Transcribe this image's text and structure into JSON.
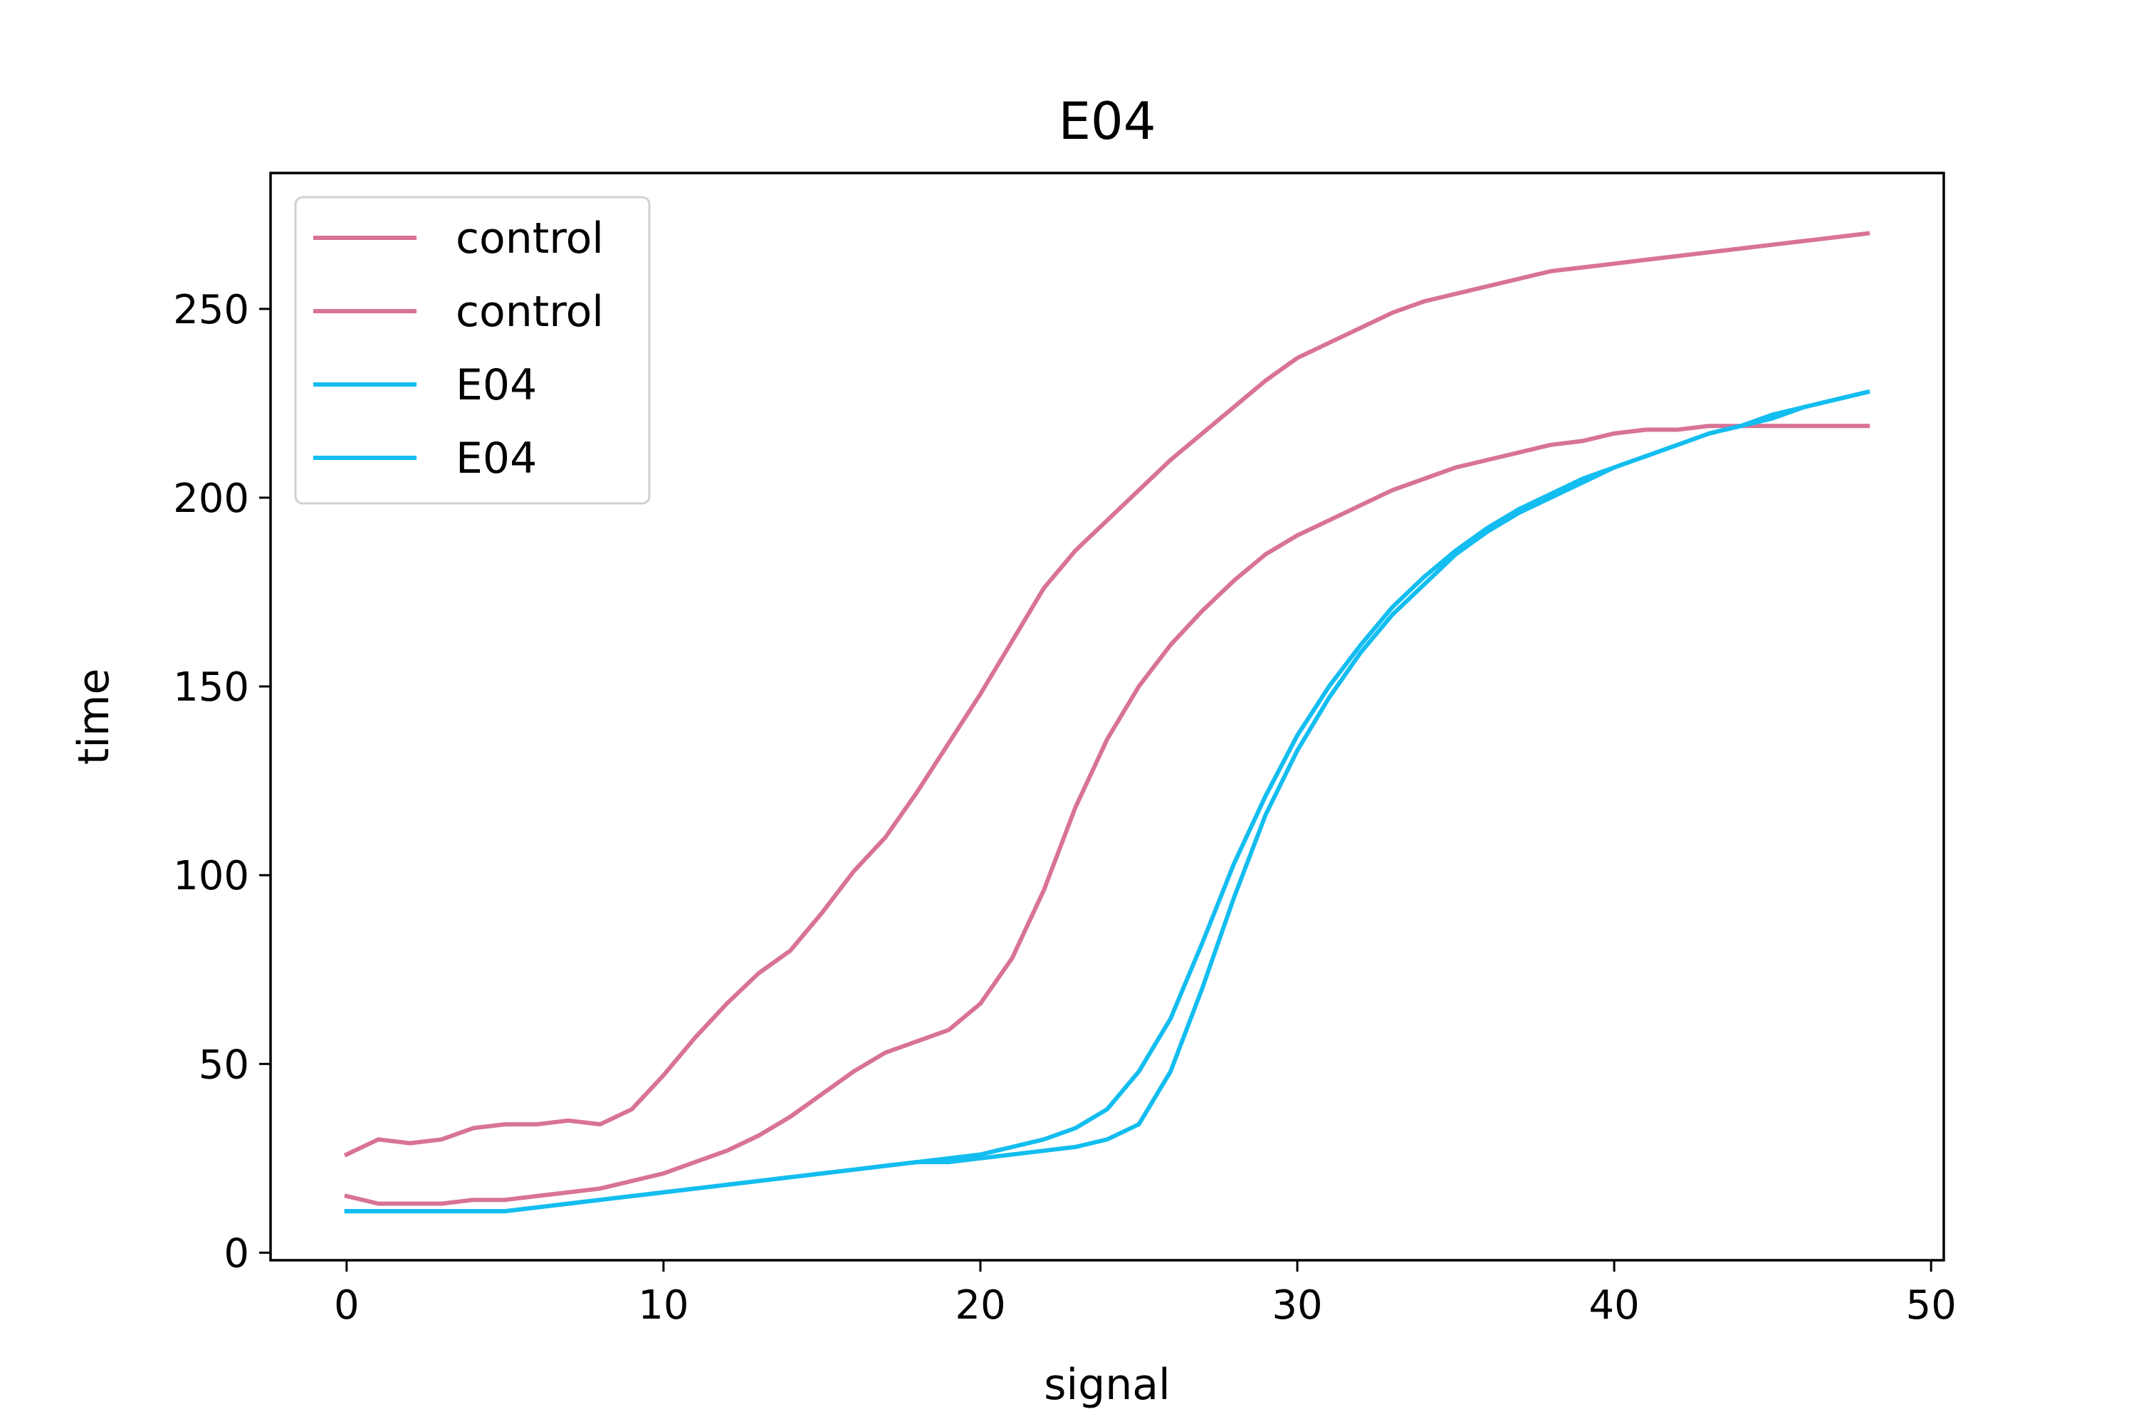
{
  "chart_data": {
    "type": "line",
    "title": "E04",
    "xlabel": "signal",
    "ylabel": "time",
    "xlim": [
      -2.4,
      50.4
    ],
    "ylim": [
      -2,
      286
    ],
    "xticks": [
      0,
      10,
      20,
      30,
      40,
      50
    ],
    "yticks": [
      0,
      50,
      100,
      150,
      200,
      250
    ],
    "grid": false,
    "legend_position": "top-left",
    "colors": {
      "control": "#d87396",
      "E04": "#13bdf0"
    },
    "series": [
      {
        "name": "control",
        "color": "#d87396",
        "points": [
          [
            0,
            26
          ],
          [
            1,
            30
          ],
          [
            2,
            29
          ],
          [
            3,
            30
          ],
          [
            4,
            33
          ],
          [
            5,
            34
          ],
          [
            6,
            34
          ],
          [
            7,
            35
          ],
          [
            8,
            34
          ],
          [
            9,
            38
          ],
          [
            10,
            47
          ],
          [
            11,
            57
          ],
          [
            12,
            66
          ],
          [
            13,
            74
          ],
          [
            14,
            80
          ],
          [
            15,
            90
          ],
          [
            16,
            101
          ],
          [
            17,
            110
          ],
          [
            18,
            122
          ],
          [
            19,
            135
          ],
          [
            20,
            148
          ],
          [
            21,
            162
          ],
          [
            22,
            176
          ],
          [
            23,
            186
          ],
          [
            24,
            194
          ],
          [
            25,
            202
          ],
          [
            26,
            210
          ],
          [
            27,
            217
          ],
          [
            28,
            224
          ],
          [
            29,
            231
          ],
          [
            30,
            237
          ],
          [
            31,
            241
          ],
          [
            32,
            245
          ],
          [
            33,
            249
          ],
          [
            34,
            252
          ],
          [
            35,
            254
          ],
          [
            36,
            256
          ],
          [
            37,
            258
          ],
          [
            38,
            260
          ],
          [
            39,
            261
          ],
          [
            40,
            262
          ],
          [
            41,
            263
          ],
          [
            42,
            264
          ],
          [
            43,
            265
          ],
          [
            44,
            266
          ],
          [
            45,
            267
          ],
          [
            46,
            268
          ],
          [
            47,
            269
          ],
          [
            48,
            270
          ]
        ]
      },
      {
        "name": "control",
        "color": "#d87396",
        "points": [
          [
            0,
            15
          ],
          [
            1,
            13
          ],
          [
            2,
            13
          ],
          [
            3,
            13
          ],
          [
            4,
            14
          ],
          [
            5,
            14
          ],
          [
            6,
            15
          ],
          [
            7,
            16
          ],
          [
            8,
            17
          ],
          [
            9,
            19
          ],
          [
            10,
            21
          ],
          [
            11,
            24
          ],
          [
            12,
            27
          ],
          [
            13,
            31
          ],
          [
            14,
            36
          ],
          [
            15,
            42
          ],
          [
            16,
            48
          ],
          [
            17,
            53
          ],
          [
            18,
            56
          ],
          [
            19,
            59
          ],
          [
            20,
            66
          ],
          [
            21,
            78
          ],
          [
            22,
            96
          ],
          [
            23,
            118
          ],
          [
            24,
            136
          ],
          [
            25,
            150
          ],
          [
            26,
            161
          ],
          [
            27,
            170
          ],
          [
            28,
            178
          ],
          [
            29,
            185
          ],
          [
            30,
            190
          ],
          [
            31,
            194
          ],
          [
            32,
            198
          ],
          [
            33,
            202
          ],
          [
            34,
            205
          ],
          [
            35,
            208
          ],
          [
            36,
            210
          ],
          [
            37,
            212
          ],
          [
            38,
            214
          ],
          [
            39,
            215
          ],
          [
            40,
            217
          ],
          [
            41,
            218
          ],
          [
            42,
            218
          ],
          [
            43,
            219
          ],
          [
            44,
            219
          ],
          [
            45,
            219
          ],
          [
            46,
            219
          ],
          [
            47,
            219
          ],
          [
            48,
            219
          ]
        ]
      },
      {
        "name": "E04",
        "color": "#13bdf0",
        "points": [
          [
            0,
            11
          ],
          [
            1,
            11
          ],
          [
            2,
            11
          ],
          [
            3,
            11
          ],
          [
            4,
            11
          ],
          [
            5,
            11
          ],
          [
            6,
            12
          ],
          [
            7,
            13
          ],
          [
            8,
            14
          ],
          [
            9,
            15
          ],
          [
            10,
            16
          ],
          [
            11,
            17
          ],
          [
            12,
            18
          ],
          [
            13,
            19
          ],
          [
            14,
            20
          ],
          [
            15,
            21
          ],
          [
            16,
            22
          ],
          [
            17,
            23
          ],
          [
            18,
            24
          ],
          [
            19,
            25
          ],
          [
            20,
            26
          ],
          [
            21,
            28
          ],
          [
            22,
            30
          ],
          [
            23,
            33
          ],
          [
            24,
            38
          ],
          [
            25,
            48
          ],
          [
            26,
            62
          ],
          [
            27,
            82
          ],
          [
            28,
            103
          ],
          [
            29,
            121
          ],
          [
            30,
            137
          ],
          [
            31,
            150
          ],
          [
            32,
            161
          ],
          [
            33,
            171
          ],
          [
            34,
            179
          ],
          [
            35,
            186
          ],
          [
            36,
            192
          ],
          [
            37,
            197
          ],
          [
            38,
            201
          ],
          [
            39,
            205
          ],
          [
            40,
            208
          ],
          [
            41,
            211
          ],
          [
            42,
            214
          ],
          [
            43,
            217
          ],
          [
            44,
            219
          ],
          [
            45,
            221
          ],
          [
            46,
            224
          ],
          [
            47,
            226
          ],
          [
            48,
            228
          ]
        ]
      },
      {
        "name": "E04",
        "color": "#13bdf0",
        "points": [
          [
            0,
            11
          ],
          [
            1,
            11
          ],
          [
            2,
            11
          ],
          [
            3,
            11
          ],
          [
            4,
            11
          ],
          [
            5,
            11
          ],
          [
            6,
            12
          ],
          [
            7,
            13
          ],
          [
            8,
            14
          ],
          [
            9,
            15
          ],
          [
            10,
            16
          ],
          [
            11,
            17
          ],
          [
            12,
            18
          ],
          [
            13,
            19
          ],
          [
            14,
            20
          ],
          [
            15,
            21
          ],
          [
            16,
            22
          ],
          [
            17,
            23
          ],
          [
            18,
            24
          ],
          [
            19,
            24
          ],
          [
            20,
            25
          ],
          [
            21,
            26
          ],
          [
            22,
            27
          ],
          [
            23,
            28
          ],
          [
            24,
            30
          ],
          [
            25,
            34
          ],
          [
            26,
            48
          ],
          [
            27,
            70
          ],
          [
            28,
            94
          ],
          [
            29,
            116
          ],
          [
            30,
            133
          ],
          [
            31,
            147
          ],
          [
            32,
            159
          ],
          [
            33,
            169
          ],
          [
            34,
            177
          ],
          [
            35,
            185
          ],
          [
            36,
            191
          ],
          [
            37,
            196
          ],
          [
            38,
            200
          ],
          [
            39,
            204
          ],
          [
            40,
            208
          ],
          [
            41,
            211
          ],
          [
            42,
            214
          ],
          [
            43,
            217
          ],
          [
            44,
            219
          ],
          [
            45,
            222
          ],
          [
            46,
            224
          ],
          [
            47,
            226
          ],
          [
            48,
            228
          ]
        ]
      }
    ]
  }
}
